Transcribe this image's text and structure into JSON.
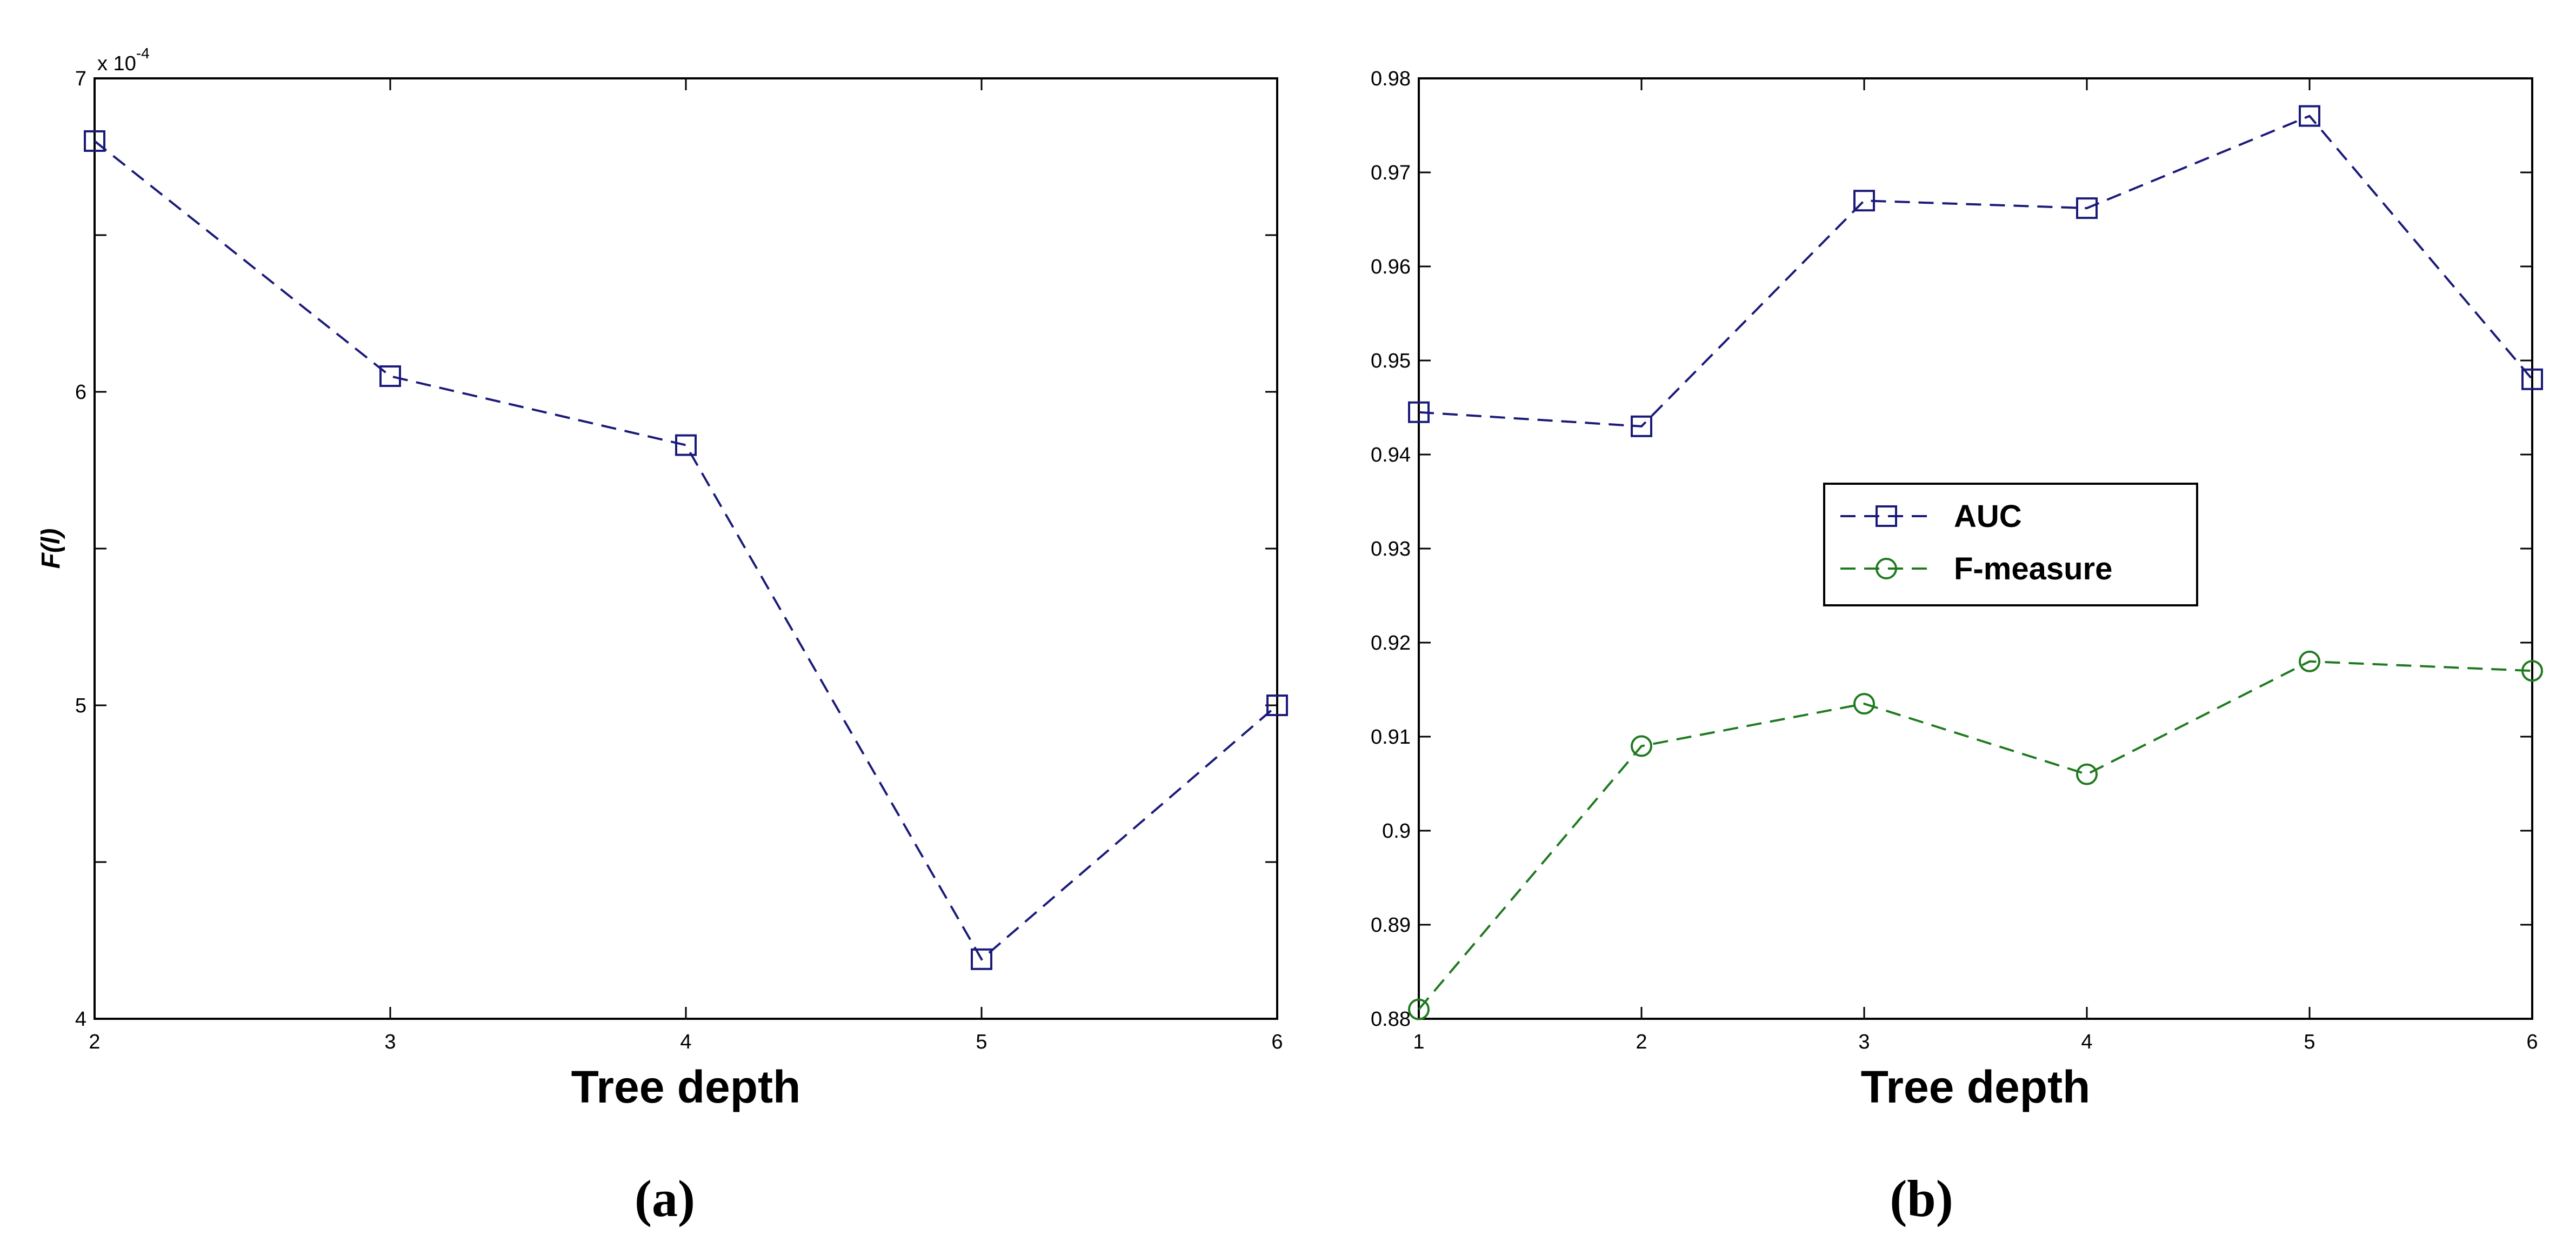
{
  "chart_data": [
    {
      "panel": "(a)",
      "type": "line",
      "xlabel": "Tree depth",
      "ylabel": "F(l)",
      "y_multiplier_label": "x 10",
      "y_multiplier_exp": "-4",
      "xlim": [
        2,
        6
      ],
      "ylim": [
        4,
        7
      ],
      "x_ticks": [
        "2",
        "3",
        "4",
        "5",
        "6"
      ],
      "y_ticks": [
        "4",
        "5",
        "6",
        "7"
      ],
      "series": [
        {
          "marker": "square",
          "color": "#1a1a7a",
          "x": [
            2,
            3,
            4,
            5,
            6
          ],
          "values": [
            6.8,
            6.05,
            5.83,
            4.19,
            5.0
          ]
        }
      ]
    },
    {
      "panel": "(b)",
      "type": "line",
      "xlabel": "Tree depth",
      "xlim": [
        1,
        6
      ],
      "ylim": [
        0.88,
        0.98
      ],
      "x_ticks": [
        "1",
        "2",
        "3",
        "4",
        "5",
        "6"
      ],
      "y_ticks": [
        "0.88",
        "0.89",
        "0.9",
        "0.91",
        "0.92",
        "0.93",
        "0.94",
        "0.95",
        "0.96",
        "0.97",
        "0.98"
      ],
      "legend": "center-right",
      "series": [
        {
          "name": "AUC",
          "marker": "square",
          "color": "#1a1a7a",
          "x": [
            1,
            2,
            3,
            4,
            5,
            6
          ],
          "values": [
            0.9445,
            0.943,
            0.967,
            0.9662,
            0.976,
            0.948
          ]
        },
        {
          "name": "F-measure",
          "marker": "circle",
          "color": "#1f7a1f",
          "x": [
            1,
            2,
            3,
            4,
            5,
            6
          ],
          "values": [
            0.881,
            0.909,
            0.9135,
            0.906,
            0.918,
            0.917
          ]
        }
      ]
    }
  ]
}
